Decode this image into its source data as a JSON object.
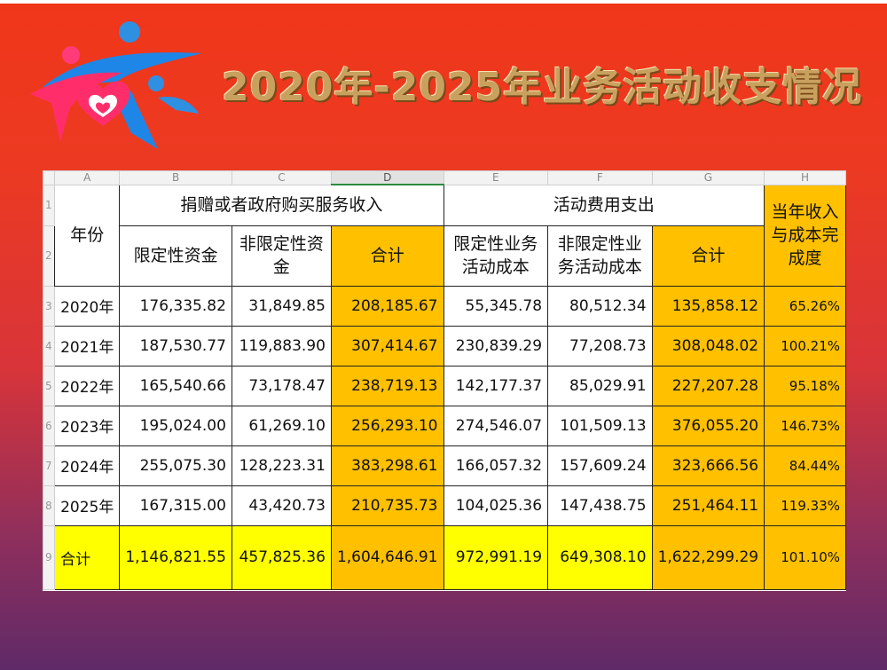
{
  "title": "2020年-2025年业务活动收支情况",
  "colors": {
    "orange": "#ffc000",
    "yellow": "#ffff00"
  },
  "columns": [
    "A",
    "B",
    "C",
    "D",
    "E",
    "F",
    "G",
    "H"
  ],
  "rows": [
    "1",
    "2",
    "3",
    "4",
    "5",
    "6",
    "7",
    "8",
    "9"
  ],
  "header": {
    "year": "年份",
    "income_group": "捐赠或者政府购买服务收入",
    "expense_group": "活动费用支出",
    "completion": "当年收入与成本完成度",
    "restricted_funds": "限定性资金",
    "unrestricted_funds": "非限定性资金",
    "income_total": "合计",
    "restricted_cost": "限定性业务活动成本",
    "unrestricted_cost": "非限定性业务活动成本",
    "expense_total": "合计"
  },
  "data": [
    [
      "2020年",
      "176,335.82",
      "31,849.85",
      "208,185.67",
      "55,345.78",
      "80,512.34",
      "135,858.12",
      "65.26%"
    ],
    [
      "2021年",
      "187,530.77",
      "119,883.90",
      "307,414.67",
      "230,839.29",
      "77,208.73",
      "308,048.02",
      "100.21%"
    ],
    [
      "2022年",
      "165,540.66",
      "73,178.47",
      "238,719.13",
      "142,177.37",
      "85,029.91",
      "227,207.28",
      "95.18%"
    ],
    [
      "2023年",
      "195,024.00",
      "61,269.10",
      "256,293.10",
      "274,546.07",
      "101,509.13",
      "376,055.20",
      "146.73%"
    ],
    [
      "2024年",
      "255,075.30",
      "128,223.31",
      "383,298.61",
      "166,057.32",
      "157,609.24",
      "323,666.56",
      "84.44%"
    ],
    [
      "2025年",
      "167,315.00",
      "43,420.73",
      "210,735.73",
      "104,025.36",
      "147,438.75",
      "251,464.11",
      "119.33%"
    ],
    [
      "合计",
      "1,146,821.55",
      "457,825.36",
      "1,604,646.91",
      "972,991.19",
      "649,308.10",
      "1,622,299.29",
      "101.10%"
    ]
  ]
}
